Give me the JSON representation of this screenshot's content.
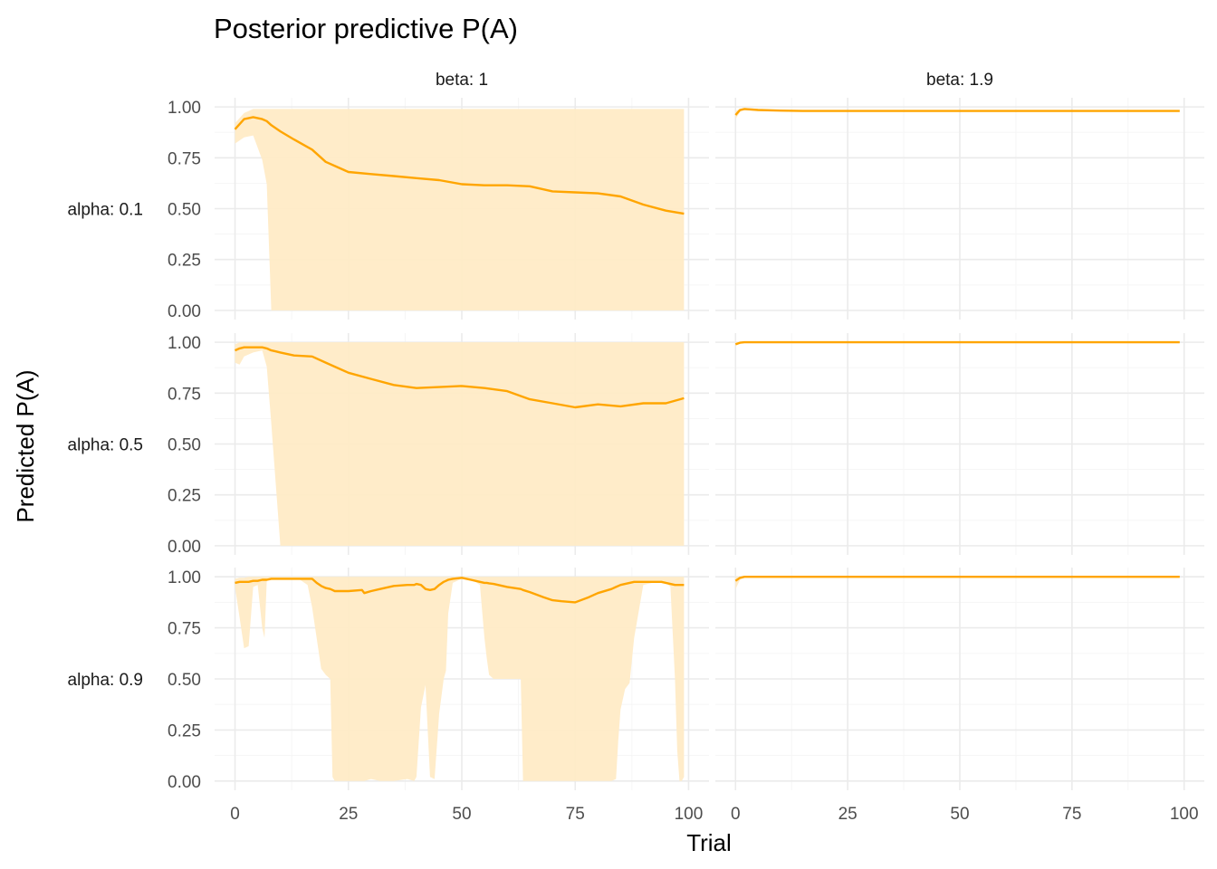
{
  "chart_data": {
    "type": "area",
    "title": "Posterior predictive P(A)",
    "xlabel": "Trial",
    "ylabel": "Predicted P(A)",
    "xlim": [
      0,
      100
    ],
    "ylim": [
      0,
      1
    ],
    "x_ticks": [
      0,
      25,
      50,
      75,
      100
    ],
    "y_ticks": [
      0,
      0.25,
      0.5,
      0.75,
      1
    ],
    "x_tick_labels": [
      "0",
      "25",
      "50",
      "75",
      "100"
    ],
    "y_tick_labels": [
      "0.00",
      "0.25",
      "0.50",
      "0.75",
      "1.00"
    ],
    "grid": true,
    "legend": "none",
    "colors": {
      "line": "#FFA500",
      "ribbon": "#FFEBC6"
    },
    "facet_cols": [
      "beta: 1",
      "beta: 1.9"
    ],
    "facet_rows": [
      "alpha: 0.1",
      "alpha: 0.5",
      "alpha: 0.9"
    ],
    "panels": [
      {
        "row": 0,
        "col": 0,
        "x": [
          0,
          2,
          4,
          6,
          7,
          8,
          10,
          13,
          17,
          20,
          25,
          30,
          35,
          40,
          45,
          50,
          55,
          60,
          65,
          70,
          75,
          80,
          85,
          90,
          95,
          99
        ],
        "mean": [
          0.89,
          0.94,
          0.95,
          0.94,
          0.93,
          0.91,
          0.88,
          0.84,
          0.79,
          0.73,
          0.68,
          0.67,
          0.66,
          0.65,
          0.64,
          0.62,
          0.615,
          0.615,
          0.61,
          0.585,
          0.58,
          0.575,
          0.56,
          0.52,
          0.49,
          0.475
        ],
        "lower": [
          0.82,
          0.85,
          0.86,
          0.74,
          0.62,
          0,
          0,
          0,
          0,
          0,
          0,
          0,
          0,
          0,
          0,
          0,
          0,
          0,
          0,
          0,
          0,
          0,
          0,
          0,
          0,
          0
        ],
        "upper": [
          0.92,
          0.97,
          0.99,
          0.99,
          0.99,
          0.99,
          0.99,
          0.99,
          0.99,
          0.99,
          0.99,
          0.99,
          0.99,
          0.99,
          0.99,
          0.99,
          0.99,
          0.99,
          0.99,
          0.99,
          0.99,
          0.99,
          0.99,
          0.99,
          0.99,
          0.99
        ]
      },
      {
        "row": 0,
        "col": 1,
        "x": [
          0,
          1,
          2,
          5,
          10,
          15,
          30,
          60,
          99
        ],
        "mean": [
          0.96,
          0.985,
          0.99,
          0.985,
          0.982,
          0.98,
          0.98,
          0.98,
          0.98
        ],
        "lower": [
          0.94,
          0.975,
          0.985,
          0.98,
          0.98,
          0.978,
          0.978,
          0.978,
          0.978
        ],
        "upper": [
          0.98,
          0.99,
          0.995,
          0.99,
          0.985,
          0.982,
          0.982,
          0.982,
          0.982
        ]
      },
      {
        "row": 1,
        "col": 0,
        "x": [
          0,
          1,
          2,
          4,
          6,
          7,
          8,
          9,
          10,
          13,
          17,
          20,
          25,
          30,
          35,
          40,
          45,
          50,
          55,
          60,
          65,
          70,
          75,
          80,
          85,
          90,
          95,
          99
        ],
        "mean": [
          0.96,
          0.97,
          0.975,
          0.975,
          0.975,
          0.97,
          0.96,
          0.955,
          0.95,
          0.935,
          0.93,
          0.9,
          0.85,
          0.82,
          0.79,
          0.775,
          0.78,
          0.785,
          0.775,
          0.76,
          0.72,
          0.7,
          0.68,
          0.695,
          0.685,
          0.7,
          0.7,
          0.725
        ],
        "lower": [
          0.9,
          0.89,
          0.93,
          0.95,
          0.96,
          0.88,
          0.6,
          0.3,
          0,
          0,
          0,
          0,
          0,
          0,
          0,
          0,
          0,
          0,
          0,
          0,
          0,
          0,
          0,
          0,
          0,
          0,
          0,
          0
        ],
        "upper": [
          0.99,
          1,
          1,
          1,
          1,
          1,
          1,
          1,
          1,
          1,
          1,
          1,
          1,
          1,
          1,
          1,
          1,
          1,
          1,
          1,
          1,
          1,
          1,
          1,
          1,
          1,
          1,
          1
        ]
      },
      {
        "row": 1,
        "col": 1,
        "x": [
          0,
          1,
          2,
          5,
          20,
          60,
          99
        ],
        "mean": [
          0.99,
          0.998,
          1,
          1,
          1,
          1,
          1
        ],
        "lower": [
          0.985,
          0.995,
          1,
          1,
          1,
          1,
          1
        ],
        "upper": [
          1,
          1,
          1,
          1,
          1,
          1,
          1
        ]
      },
      {
        "row": 2,
        "col": 0,
        "x": [
          0,
          1,
          2,
          3,
          4,
          5,
          6,
          6.5,
          7,
          8,
          10,
          12,
          14,
          16,
          17,
          18,
          19,
          20,
          21,
          21.5,
          22,
          25,
          28,
          28.5,
          30,
          32,
          35,
          38,
          39.5,
          40,
          41,
          42,
          43,
          44,
          45,
          46,
          46.5,
          47,
          48,
          50,
          52,
          54,
          55,
          55.5,
          56,
          57,
          58,
          60,
          63,
          63.5,
          65,
          68,
          70,
          72,
          75,
          78,
          80,
          83,
          84,
          84.5,
          85,
          86,
          87,
          88,
          90,
          92,
          94,
          95,
          96,
          97,
          97.5,
          98,
          98.5,
          99
        ],
        "mean": [
          0.97,
          0.975,
          0.975,
          0.975,
          0.98,
          0.98,
          0.985,
          0.985,
          0.985,
          0.99,
          0.99,
          0.99,
          0.99,
          0.99,
          0.99,
          0.97,
          0.955,
          0.945,
          0.94,
          0.935,
          0.93,
          0.93,
          0.935,
          0.92,
          0.93,
          0.94,
          0.955,
          0.96,
          0.96,
          0.965,
          0.96,
          0.94,
          0.935,
          0.94,
          0.96,
          0.975,
          0.98,
          0.985,
          0.99,
          0.995,
          0.985,
          0.975,
          0.97,
          0.97,
          0.968,
          0.965,
          0.96,
          0.95,
          0.94,
          0.935,
          0.925,
          0.9,
          0.885,
          0.88,
          0.875,
          0.9,
          0.92,
          0.94,
          0.95,
          0.955,
          0.96,
          0.965,
          0.97,
          0.975,
          0.975,
          0.975,
          0.975,
          0.97,
          0.965,
          0.96,
          0.96,
          0.96,
          0.96,
          0.96
        ],
        "lower": [
          0.95,
          0.8,
          0.65,
          0.66,
          0.95,
          0.96,
          0.75,
          0.7,
          0.98,
          0.99,
          0.99,
          0.99,
          0.99,
          0.96,
          0.85,
          0.7,
          0.55,
          0.52,
          0.5,
          0.02,
          0,
          0,
          0,
          0,
          0.01,
          0,
          0,
          0.01,
          0,
          0.02,
          0.36,
          0.47,
          0.02,
          0.01,
          0.33,
          0.5,
          0.54,
          0.82,
          0.97,
          0.99,
          0.99,
          0.96,
          0.7,
          0.6,
          0.52,
          0.5,
          0.5,
          0.5,
          0.5,
          0,
          0,
          0,
          0,
          0,
          0,
          0,
          0,
          0,
          0.01,
          0.2,
          0.35,
          0.45,
          0.48,
          0.7,
          0.96,
          0.97,
          0.97,
          0.97,
          0.95,
          0.5,
          0.15,
          0,
          0,
          0.02
        ],
        "upper": [
          0.99,
          0.995,
          0.995,
          1,
          1,
          1,
          1,
          1,
          1,
          1,
          1,
          1,
          1,
          1,
          1,
          1,
          1,
          1,
          1,
          1,
          1,
          1,
          1,
          1,
          1,
          1,
          1,
          1,
          1,
          1,
          1,
          1,
          1,
          1,
          1,
          1,
          1,
          1,
          1,
          1,
          1,
          1,
          1,
          1,
          1,
          1,
          1,
          1,
          1,
          1,
          1,
          1,
          1,
          1,
          1,
          1,
          1,
          1,
          1,
          1,
          1,
          1,
          1,
          1,
          1,
          1,
          1,
          1,
          1,
          1,
          1,
          1,
          1,
          1
        ]
      },
      {
        "row": 2,
        "col": 1,
        "x": [
          0,
          1,
          2,
          5,
          20,
          60,
          99
        ],
        "mean": [
          0.98,
          0.995,
          1,
          1,
          1,
          1,
          1
        ],
        "lower": [
          0.94,
          0.985,
          0.995,
          1,
          1,
          1,
          1
        ],
        "upper": [
          1,
          1,
          1,
          1,
          1,
          1,
          1
        ]
      }
    ]
  }
}
